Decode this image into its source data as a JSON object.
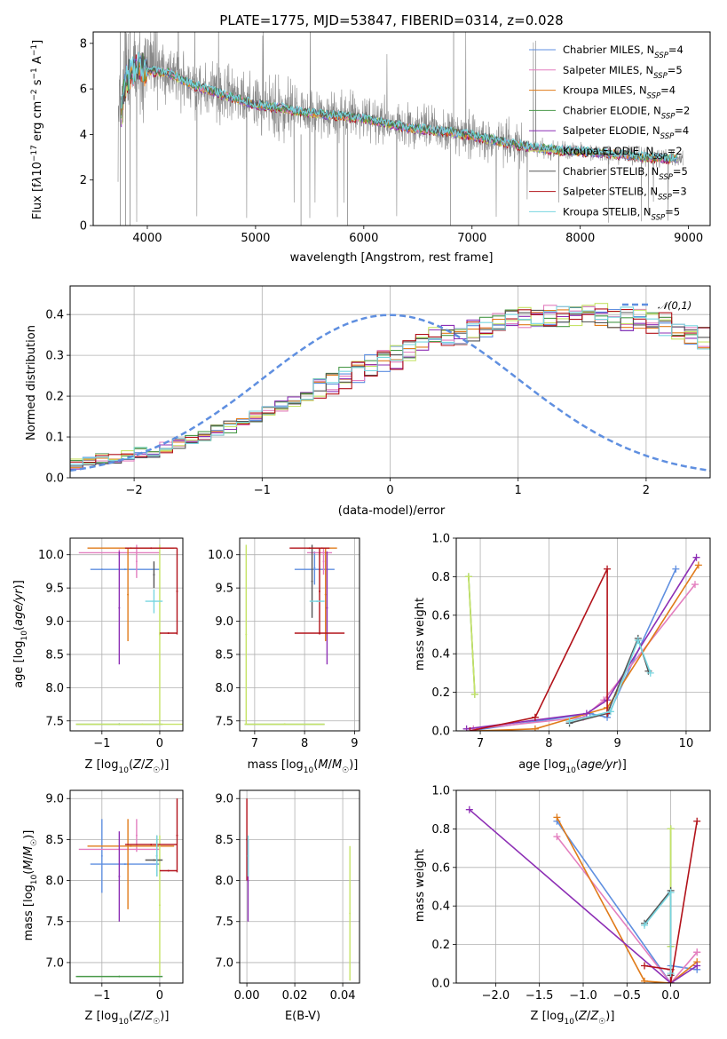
{
  "colors": {
    "chab_miles": "#5f8fe0",
    "salp_miles": "#e37fbf",
    "krou_miles": "#e07b1a",
    "chab_elod": "#4a9a4a",
    "salp_elod": "#8d2fb5",
    "krou_elod": "#c6e367",
    "chab_stel": "#555555",
    "salp_stel": "#b2121a",
    "krou_stel": "#78d6e0",
    "data": "#888888",
    "gauss": "#5f8fe0"
  },
  "chart_data": [
    {
      "id": "spectrum",
      "type": "line",
      "title": "PLATE=1775, MJD=53847, FIBERID=0314, z=0.028",
      "xlabel": "wavelength [Angstrom, rest frame]",
      "ylabel": "Flux [f_λ 10^-17 erg cm^-2 s^-1 A^-1]",
      "xlim": [
        3500,
        9200
      ],
      "ylim": [
        0,
        8.5
      ],
      "xticks": [
        "4000",
        "5000",
        "6000",
        "7000",
        "8000",
        "9000"
      ],
      "yticks": [
        "0",
        "2",
        "4",
        "6",
        "8"
      ],
      "grid": false,
      "legend_position": "top-right",
      "series": [
        {
          "name": "Chabrier MILES, N_SSP=4",
          "color_key": "chab_miles"
        },
        {
          "name": "Salpeter MILES, N_SSP=5",
          "color_key": "salp_miles"
        },
        {
          "name": "Kroupa MILES, N_SSP=4",
          "color_key": "krou_miles"
        },
        {
          "name": "Chabrier ELODIE, N_SSP=2",
          "color_key": "chab_elod"
        },
        {
          "name": "Salpeter ELODIE, N_SSP=4",
          "color_key": "salp_elod"
        },
        {
          "name": "Kroupa ELODIE, N_SSP=2",
          "color_key": "krou_elod"
        },
        {
          "name": "Chabrier STELIB, N_SSP=5",
          "color_key": "chab_stel"
        },
        {
          "name": "Salpeter STELIB, N_SSP=3",
          "color_key": "salp_stel"
        },
        {
          "name": "Kroupa STELIB, N_SSP=5",
          "color_key": "krou_stel"
        }
      ],
      "continuum": {
        "x": [
          3750,
          3800,
          3900,
          4000,
          4200,
          4400,
          4600,
          4800,
          5000,
          5200,
          5400,
          5600,
          5800,
          6000,
          6200,
          6400,
          6600,
          6800,
          7000,
          7200,
          7400,
          7600,
          7800,
          8000,
          8200,
          8400,
          8600,
          8800
        ],
        "y": [
          4.5,
          6.4,
          6.9,
          6.8,
          6.7,
          6.2,
          5.9,
          5.6,
          5.3,
          5.2,
          5.0,
          4.9,
          4.8,
          4.7,
          4.5,
          4.3,
          4.2,
          4.1,
          3.95,
          3.75,
          3.55,
          3.4,
          3.3,
          3.25,
          3.2,
          3.1,
          3.0,
          2.95
        ]
      }
    },
    {
      "id": "residuals",
      "type": "histogram",
      "xlabel": "(data-model)/error",
      "ylabel": "Normed distribution",
      "xlim": [
        -2.5,
        2.5
      ],
      "ylim": [
        0,
        0.47
      ],
      "xticks": [
        "−2",
        "−1",
        "0",
        "1",
        "2"
      ],
      "yticks": [
        "0.0",
        "0.1",
        "0.2",
        "0.3",
        "0.4"
      ],
      "grid": true,
      "legend": "N(0,1)",
      "legend_position": "top-right",
      "bin_width": 0.1,
      "bins_start": -2.5,
      "base": [
        0.035,
        0.04,
        0.045,
        0.05,
        0.055,
        0.06,
        0.065,
        0.075,
        0.085,
        0.095,
        0.105,
        0.115,
        0.125,
        0.135,
        0.15,
        0.16,
        0.175,
        0.185,
        0.2,
        0.215,
        0.235,
        0.245,
        0.26,
        0.275,
        0.29,
        0.295,
        0.31,
        0.325,
        0.34,
        0.345,
        0.355,
        0.365,
        0.375,
        0.38,
        0.385,
        0.39,
        0.395,
        0.395,
        0.4,
        0.4,
        0.4,
        0.4,
        0.395,
        0.39,
        0.385,
        0.38,
        0.375,
        0.365,
        0.355,
        0.345,
        0.335,
        0.32,
        0.305,
        0.29,
        0.275,
        0.26,
        0.245,
        0.23,
        0.215,
        0.2,
        0.185,
        0.175,
        0.16,
        0.145,
        0.135,
        0.125,
        0.115,
        0.105,
        0.095,
        0.085,
        0.075,
        0.07,
        0.065,
        0.06,
        0.055,
        0.05,
        0.045,
        0.04,
        0.035,
        0.035
      ],
      "series_keys": [
        "chab_miles",
        "salp_miles",
        "krou_miles",
        "chab_elod",
        "salp_elod",
        "krou_elod",
        "chab_stel",
        "salp_stel",
        "krou_stel"
      ]
    },
    {
      "id": "age_vs_Z",
      "type": "errorbar",
      "xlabel": "Z [log10(Z/Z☉)]",
      "ylabel": "age [log10(age/yr)]",
      "xlim": [
        -1.55,
        0.4
      ],
      "ylim": [
        7.35,
        10.25
      ],
      "xticks": [
        "−1",
        "0"
      ],
      "yticks": [
        "7.5",
        "8.0",
        "8.5",
        "9.0",
        "9.5",
        "10.0"
      ],
      "xtick_values": [
        -1,
        0
      ],
      "ytick_values": [
        7.5,
        8.0,
        8.5,
        9.0,
        9.5,
        10.0
      ],
      "grid": true,
      "points": [
        {
          "x": -0.6,
          "xerr": 0.6,
          "y": 9.78,
          "yerr": 0.0,
          "color_key": "chab_miles"
        },
        {
          "x": -1.0,
          "xerr": 0.0,
          "y": 9.78,
          "yerr": 0.0,
          "color_key": "chab_miles"
        },
        {
          "x": -0.7,
          "xerr": 0.7,
          "y": 10.03,
          "yerr": 0.05,
          "color_key": "salp_miles"
        },
        {
          "x": -0.4,
          "xerr": 0.0,
          "y": 9.9,
          "yerr": 0.25,
          "color_key": "salp_miles"
        },
        {
          "x": -0.55,
          "xerr": 0.0,
          "y": 9.4,
          "yerr": 0.7,
          "color_key": "krou_miles"
        },
        {
          "x": -0.5,
          "xerr": 0.75,
          "y": 10.1,
          "yerr": 0.0,
          "color_key": "krou_miles"
        },
        {
          "x": -0.7,
          "xerr": 0.75,
          "y": 7.45,
          "yerr": 0.0,
          "color_key": "chab_elod"
        },
        {
          "x": -0.7,
          "xerr": 0.0,
          "y": 9.2,
          "yerr": 0.85,
          "color_key": "salp_elod"
        },
        {
          "x": 0.0,
          "xerr": 0.0,
          "y": 8.8,
          "yerr": 1.35,
          "color_key": "krou_elod"
        },
        {
          "x": -0.3,
          "xerr": 1.15,
          "y": 7.45,
          "yerr": 0.0,
          "color_key": "krou_elod"
        },
        {
          "x": -0.1,
          "xerr": 0.0,
          "y": 9.7,
          "yerr": 0.2,
          "color_key": "chab_stel"
        },
        {
          "x": 0.3,
          "xerr": 0.0,
          "y": 9.45,
          "yerr": 0.65,
          "color_key": "salp_stel"
        },
        {
          "x": -0.15,
          "xerr": 0.45,
          "y": 10.1,
          "yerr": 0.0,
          "color_key": "salp_stel"
        },
        {
          "x": 0.15,
          "xerr": 0.15,
          "y": 8.82,
          "yerr": 0.0,
          "color_key": "salp_stel"
        },
        {
          "x": -0.1,
          "xerr": 0.15,
          "y": 9.3,
          "yerr": 0.18,
          "color_key": "krou_stel"
        }
      ]
    },
    {
      "id": "age_vs_mass",
      "type": "errorbar",
      "xlabel": "mass [log10(M/M☉)]",
      "ylabel": "",
      "xlim": [
        6.7,
        9.1
      ],
      "ylim": [
        7.35,
        10.25
      ],
      "xticks": [
        "7",
        "8",
        "9"
      ],
      "yticks": [
        "7.5",
        "8.0",
        "8.5",
        "9.0",
        "9.5",
        "10.0"
      ],
      "xtick_values": [
        7,
        8,
        9
      ],
      "ytick_values": [
        7.5,
        8.0,
        8.5,
        9.0,
        9.5,
        10.0
      ],
      "grid": true,
      "points": [
        {
          "x": 8.2,
          "xerr": 0.4,
          "y": 9.78,
          "yerr": 0.0,
          "color_key": "chab_miles"
        },
        {
          "x": 8.2,
          "xerr": 0.0,
          "y": 9.8,
          "yerr": 0.25,
          "color_key": "chab_miles"
        },
        {
          "x": 8.38,
          "xerr": 0.0,
          "y": 9.9,
          "yerr": 0.2,
          "color_key": "salp_miles"
        },
        {
          "x": 8.3,
          "xerr": 0.25,
          "y": 10.03,
          "yerr": 0.0,
          "color_key": "salp_miles"
        },
        {
          "x": 8.42,
          "xerr": 0.0,
          "y": 9.4,
          "yerr": 0.7,
          "color_key": "krou_miles"
        },
        {
          "x": 8.35,
          "xerr": 0.3,
          "y": 10.1,
          "yerr": 0.0,
          "color_key": "krou_miles"
        },
        {
          "x": 7.6,
          "xerr": 0.8,
          "y": 7.45,
          "yerr": 0.0,
          "color_key": "chab_elod"
        },
        {
          "x": 8.45,
          "xerr": 0.0,
          "y": 9.2,
          "yerr": 0.85,
          "color_key": "salp_elod"
        },
        {
          "x": 6.83,
          "xerr": 0.0,
          "y": 8.8,
          "yerr": 1.35,
          "color_key": "krou_elod"
        },
        {
          "x": 7.6,
          "xerr": 0.8,
          "y": 7.45,
          "yerr": 0.0,
          "color_key": "krou_elod"
        },
        {
          "x": 8.15,
          "xerr": 0.0,
          "y": 9.6,
          "yerr": 0.55,
          "color_key": "chab_stel"
        },
        {
          "x": 8.3,
          "xerr": 0.0,
          "y": 9.45,
          "yerr": 0.65,
          "color_key": "salp_stel"
        },
        {
          "x": 8.3,
          "xerr": 0.5,
          "y": 8.82,
          "yerr": 0.0,
          "color_key": "salp_stel"
        },
        {
          "x": 8.1,
          "xerr": 0.4,
          "y": 10.1,
          "yerr": 0.0,
          "color_key": "salp_stel"
        },
        {
          "x": 8.25,
          "xerr": 0.15,
          "y": 9.3,
          "yerr": 0.0,
          "color_key": "krou_stel"
        }
      ]
    },
    {
      "id": "mass_weight_vs_age",
      "type": "line",
      "xlabel": "age [log10(age/yr)]",
      "ylabel": "mass weight",
      "xlim": [
        6.65,
        10.35
      ],
      "ylim": [
        0,
        1.0
      ],
      "xticks": [
        "7",
        "8",
        "9",
        "10"
      ],
      "yticks": [
        "0.0",
        "0.2",
        "0.4",
        "0.6",
        "0.8",
        "1.0"
      ],
      "xtick_values": [
        7,
        8,
        9,
        10
      ],
      "ytick_values": [
        0,
        0.2,
        0.4,
        0.6,
        0.8,
        1.0
      ],
      "grid": true,
      "series": [
        {
          "color_key": "chab_miles",
          "x": [
            6.85,
            8.6,
            8.85,
            9.85
          ],
          "y": [
            0.0,
            0.09,
            0.07,
            0.84
          ]
        },
        {
          "color_key": "salp_miles",
          "x": [
            6.9,
            8.5,
            8.8,
            10.13
          ],
          "y": [
            0.01,
            0.07,
            0.16,
            0.76
          ]
        },
        {
          "color_key": "krou_miles",
          "x": [
            6.95,
            7.8,
            8.85,
            10.18
          ],
          "y": [
            0.0,
            0.01,
            0.12,
            0.86
          ]
        },
        {
          "color_key": "chab_elod",
          "x": [
            6.83,
            6.92
          ],
          "y": [
            0.8,
            0.19
          ]
        },
        {
          "color_key": "salp_elod",
          "x": [
            6.8,
            8.55,
            8.85,
            10.15
          ],
          "y": [
            0.01,
            0.09,
            0.16,
            0.9
          ]
        },
        {
          "color_key": "krou_elod",
          "x": [
            6.83,
            6.92
          ],
          "y": [
            0.8,
            0.19
          ]
        },
        {
          "color_key": "chab_stel",
          "x": [
            8.3,
            8.85,
            9.3,
            9.45
          ],
          "y": [
            0.04,
            0.09,
            0.48,
            0.31
          ]
        },
        {
          "color_key": "salp_stel",
          "x": [
            6.85,
            7.8,
            8.85,
            8.85
          ],
          "y": [
            0.0,
            0.07,
            0.84,
            0.09
          ]
        },
        {
          "color_key": "krou_stel",
          "x": [
            8.3,
            8.9,
            9.3,
            9.48
          ],
          "y": [
            0.05,
            0.1,
            0.47,
            0.3
          ]
        }
      ]
    },
    {
      "id": "mass_vs_Z",
      "type": "errorbar",
      "xlabel": "Z [log10(Z/Z☉)]",
      "ylabel": "mass [log10(M/M☉)]",
      "xlim": [
        -1.55,
        0.4
      ],
      "ylim": [
        6.75,
        9.1
      ],
      "xticks": [
        "−1",
        "0"
      ],
      "yticks": [
        "7.0",
        "7.5",
        "8.0",
        "8.5",
        "9.0"
      ],
      "xtick_values": [
        -1,
        0
      ],
      "ytick_values": [
        7.0,
        7.5,
        8.0,
        8.5,
        9.0
      ],
      "grid": true,
      "points": [
        {
          "x": -0.6,
          "xerr": 0.6,
          "y": 8.2,
          "yerr": 0.0,
          "color_key": "chab_miles"
        },
        {
          "x": -1.0,
          "xerr": 0.0,
          "y": 8.3,
          "yerr": 0.45,
          "color_key": "chab_miles"
        },
        {
          "x": -0.7,
          "xerr": 0.7,
          "y": 8.38,
          "yerr": 0.0,
          "color_key": "salp_miles"
        },
        {
          "x": -0.4,
          "xerr": 0.0,
          "y": 8.55,
          "yerr": 0.2,
          "color_key": "salp_miles"
        },
        {
          "x": -0.55,
          "xerr": 0.0,
          "y": 8.2,
          "yerr": 0.55,
          "color_key": "krou_miles"
        },
        {
          "x": -0.5,
          "xerr": 0.75,
          "y": 8.42,
          "yerr": 0.0,
          "color_key": "krou_miles"
        },
        {
          "x": -0.7,
          "xerr": 0.75,
          "y": 6.83,
          "yerr": 0.0,
          "color_key": "chab_elod"
        },
        {
          "x": -0.7,
          "xerr": 0.0,
          "y": 8.05,
          "yerr": 0.55,
          "color_key": "salp_elod"
        },
        {
          "x": 0.0,
          "xerr": 0.0,
          "y": 7.7,
          "yerr": 0.85,
          "color_key": "krou_elod"
        },
        {
          "x": -0.1,
          "xerr": 0.15,
          "y": 8.25,
          "yerr": 0.0,
          "color_key": "chab_stel"
        },
        {
          "x": -0.05,
          "xerr": 0.0,
          "y": 8.3,
          "yerr": 0.25,
          "color_key": "chab_stel"
        },
        {
          "x": 0.3,
          "xerr": 0.0,
          "y": 8.55,
          "yerr": 0.45,
          "color_key": "salp_stel"
        },
        {
          "x": -0.15,
          "xerr": 0.45,
          "y": 8.44,
          "yerr": 0.0,
          "color_key": "salp_stel"
        },
        {
          "x": 0.15,
          "xerr": 0.15,
          "y": 8.12,
          "yerr": 0.0,
          "color_key": "salp_stel"
        },
        {
          "x": -0.05,
          "xerr": 0.0,
          "y": 8.3,
          "yerr": 0.25,
          "color_key": "krou_stel"
        }
      ]
    },
    {
      "id": "mass_vs_ebv",
      "type": "errorbar",
      "xlabel": "E(B-V)",
      "ylabel": "",
      "xlim": [
        -0.003,
        0.047
      ],
      "ylim": [
        6.75,
        9.1
      ],
      "xticks": [
        "0.00",
        "0.02",
        "0.04"
      ],
      "yticks": [
        "7.0",
        "7.5",
        "8.0",
        "8.5",
        "9.0"
      ],
      "xtick_values": [
        0.0,
        0.02,
        0.04
      ],
      "ytick_values": [
        7.0,
        7.5,
        8.0,
        8.5,
        9.0
      ],
      "grid": true,
      "points": [
        {
          "x": 0.0,
          "xerr": 0.0,
          "y": 8.5,
          "yerr": 0.5,
          "color_key": "salp_stel"
        },
        {
          "x": 0.0005,
          "xerr": 0.0,
          "y": 8.0,
          "yerr": 0.5,
          "color_key": "salp_elod"
        },
        {
          "x": 0.0005,
          "xerr": 0.0,
          "y": 8.3,
          "yerr": 0.25,
          "color_key": "krou_stel"
        },
        {
          "x": 0.043,
          "xerr": 0.0,
          "y": 7.6,
          "yerr": 0.82,
          "color_key": "krou_elod"
        }
      ]
    },
    {
      "id": "mass_weight_vs_Z",
      "type": "line",
      "xlabel": "Z [log10(Z/Z☉)]",
      "ylabel": "mass weight",
      "xlim": [
        -2.45,
        0.45
      ],
      "ylim": [
        0,
        1.0
      ],
      "xticks": [
        "−2.0",
        "−1.5",
        "−1.0",
        "−0.5",
        "0.0"
      ],
      "yticks": [
        "0.0",
        "0.2",
        "0.4",
        "0.6",
        "0.8",
        "1.0"
      ],
      "xtick_values": [
        -2.0,
        -1.5,
        -1.0,
        -0.5,
        0.0
      ],
      "ytick_values": [
        0,
        0.2,
        0.4,
        0.6,
        0.8,
        1.0
      ],
      "grid": true,
      "series": [
        {
          "color_key": "chab_miles",
          "x": [
            -1.3,
            0.0,
            0.0,
            0.3
          ],
          "y": [
            0.84,
            0.0,
            0.09,
            0.07
          ]
        },
        {
          "color_key": "salp_miles",
          "x": [
            -1.3,
            0.0,
            0.3,
            0.3
          ],
          "y": [
            0.76,
            0.0,
            0.16,
            0.16
          ]
        },
        {
          "color_key": "krou_miles",
          "x": [
            -1.3,
            -0.3,
            0.0,
            0.3
          ],
          "y": [
            0.86,
            0.01,
            0.0,
            0.11
          ]
        },
        {
          "color_key": "chab_elod",
          "x": [
            0.0,
            0.0
          ],
          "y": [
            0.8,
            0.19
          ]
        },
        {
          "color_key": "salp_elod",
          "x": [
            -2.3,
            0.0,
            0.3
          ],
          "y": [
            0.9,
            0.0,
            0.09
          ]
        },
        {
          "color_key": "krou_elod",
          "x": [
            0.0,
            0.0
          ],
          "y": [
            0.8,
            0.19
          ]
        },
        {
          "color_key": "chab_stel",
          "x": [
            -0.3,
            0.0,
            0.0
          ],
          "y": [
            0.31,
            0.48,
            0.04
          ]
        },
        {
          "color_key": "salp_stel",
          "x": [
            -0.3,
            0.0,
            0.0,
            0.3
          ],
          "y": [
            0.09,
            0.07,
            0.0,
            0.84
          ]
        },
        {
          "color_key": "krou_stel",
          "x": [
            -0.3,
            0.0,
            0.0
          ],
          "y": [
            0.3,
            0.47,
            0.05
          ]
        }
      ]
    }
  ]
}
